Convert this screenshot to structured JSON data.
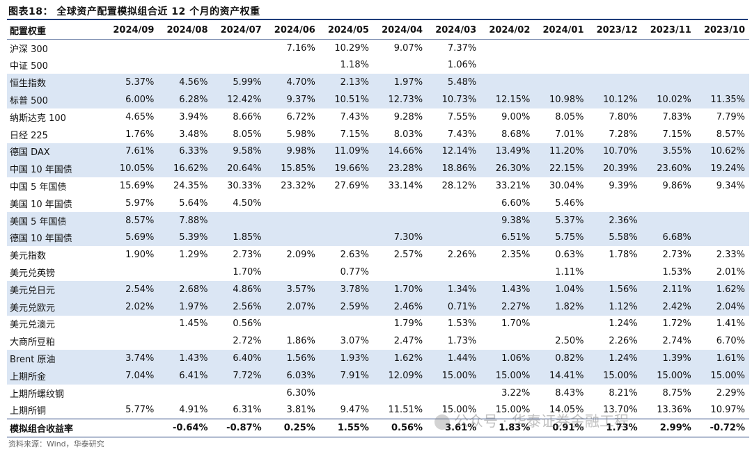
{
  "title": "图表18：  全球资产配置模拟组合近 12 个月的资产权重",
  "columns": [
    "配置权重",
    "2024/09",
    "2024/08",
    "2024/07",
    "2024/06",
    "2024/05",
    "2024/04",
    "2024/03",
    "2024/02",
    "2024/01",
    "2023/12",
    "2023/11",
    "2023/10"
  ],
  "rows": [
    {
      "name": "沪深 300",
      "shade": false,
      "cells": [
        "",
        "",
        "",
        "7.16%",
        "10.29%",
        "9.07%",
        "7.37%",
        "",
        "",
        "",
        "",
        ""
      ]
    },
    {
      "name": "中证 500",
      "shade": false,
      "cells": [
        "",
        "",
        "",
        "",
        "1.18%",
        "",
        "1.06%",
        "",
        "",
        "",
        "",
        ""
      ]
    },
    {
      "name": "恒生指数",
      "shade": true,
      "cells": [
        "5.37%",
        "4.56%",
        "5.99%",
        "4.70%",
        "2.13%",
        "1.97%",
        "5.48%",
        "",
        "",
        "",
        "",
        ""
      ]
    },
    {
      "name": "标普 500",
      "shade": true,
      "cells": [
        "6.00%",
        "6.28%",
        "12.42%",
        "9.37%",
        "10.51%",
        "12.73%",
        "10.73%",
        "12.15%",
        "10.98%",
        "10.12%",
        "10.02%",
        "11.35%"
      ]
    },
    {
      "name": "纳斯达克 100",
      "shade": false,
      "cells": [
        "4.65%",
        "3.94%",
        "8.66%",
        "6.72%",
        "7.43%",
        "9.28%",
        "7.55%",
        "9.00%",
        "8.05%",
        "7.80%",
        "7.83%",
        "7.79%"
      ]
    },
    {
      "name": "日经 225",
      "shade": false,
      "cells": [
        "1.76%",
        "3.48%",
        "8.05%",
        "5.98%",
        "7.15%",
        "8.03%",
        "7.43%",
        "8.68%",
        "7.01%",
        "7.28%",
        "7.15%",
        "8.57%"
      ]
    },
    {
      "name": "德国 DAX",
      "shade": true,
      "cells": [
        "7.61%",
        "6.33%",
        "9.58%",
        "9.98%",
        "11.09%",
        "14.66%",
        "12.14%",
        "13.49%",
        "11.20%",
        "10.70%",
        "3.55%",
        "10.62%"
      ]
    },
    {
      "name": "中国 10 年国债",
      "shade": true,
      "cells": [
        "10.05%",
        "16.62%",
        "20.64%",
        "15.85%",
        "19.66%",
        "23.28%",
        "18.86%",
        "26.30%",
        "22.15%",
        "20.39%",
        "23.60%",
        "19.24%"
      ]
    },
    {
      "name": "中国 5 年国债",
      "shade": false,
      "cells": [
        "15.69%",
        "24.35%",
        "30.33%",
        "23.32%",
        "27.69%",
        "33.14%",
        "28.12%",
        "33.21%",
        "30.04%",
        "9.39%",
        "9.86%",
        "9.34%"
      ]
    },
    {
      "name": "美国 10 年国债",
      "shade": false,
      "cells": [
        "5.97%",
        "5.64%",
        "4.50%",
        "",
        "",
        "",
        "",
        "6.60%",
        "5.46%",
        "",
        "",
        ""
      ]
    },
    {
      "name": "美国 5 年国债",
      "shade": true,
      "cells": [
        "8.57%",
        "7.88%",
        "",
        "",
        "",
        "",
        "",
        "9.38%",
        "5.37%",
        "2.36%",
        "",
        ""
      ]
    },
    {
      "name": "德国 10 年国债",
      "shade": true,
      "cells": [
        "5.69%",
        "5.39%",
        "1.85%",
        "",
        "",
        "7.30%",
        "",
        "6.51%",
        "5.75%",
        "5.58%",
        "6.68%",
        ""
      ]
    },
    {
      "name": "美元指数",
      "shade": false,
      "cells": [
        "1.90%",
        "1.29%",
        "2.73%",
        "2.09%",
        "2.63%",
        "2.57%",
        "2.26%",
        "2.35%",
        "0.63%",
        "1.78%",
        "2.73%",
        "2.33%"
      ]
    },
    {
      "name": "美元兑英镑",
      "shade": false,
      "cells": [
        "",
        "",
        "1.70%",
        "",
        "0.77%",
        "",
        "",
        "",
        "1.11%",
        "",
        "1.53%",
        "2.01%"
      ]
    },
    {
      "name": "美元兑日元",
      "shade": true,
      "cells": [
        "2.54%",
        "2.68%",
        "4.86%",
        "3.57%",
        "3.78%",
        "1.70%",
        "1.34%",
        "1.43%",
        "1.04%",
        "1.56%",
        "2.11%",
        "1.62%"
      ]
    },
    {
      "name": "美元兑欧元",
      "shade": true,
      "cells": [
        "2.02%",
        "1.97%",
        "2.56%",
        "2.07%",
        "2.59%",
        "2.46%",
        "0.71%",
        "2.27%",
        "1.82%",
        "1.12%",
        "2.42%",
        "2.04%"
      ]
    },
    {
      "name": "美元兑澳元",
      "shade": false,
      "cells": [
        "",
        "1.45%",
        "0.56%",
        "",
        "",
        "1.79%",
        "1.53%",
        "1.70%",
        "",
        "1.24%",
        "1.72%",
        "1.41%"
      ]
    },
    {
      "name": "大商所豆粕",
      "shade": false,
      "cells": [
        "",
        "",
        "2.72%",
        "1.86%",
        "3.07%",
        "2.47%",
        "1.73%",
        "",
        "2.50%",
        "2.26%",
        "2.74%",
        "6.70%"
      ]
    },
    {
      "name": "Brent 原油",
      "shade": true,
      "cells": [
        "3.74%",
        "1.43%",
        "6.40%",
        "1.56%",
        "1.93%",
        "1.62%",
        "1.44%",
        "1.06%",
        "0.82%",
        "1.24%",
        "1.39%",
        "1.61%"
      ]
    },
    {
      "name": "上期所金",
      "shade": true,
      "cells": [
        "7.04%",
        "6.41%",
        "7.72%",
        "6.03%",
        "7.91%",
        "12.09%",
        "15.00%",
        "15.00%",
        "14.41%",
        "15.00%",
        "15.00%",
        "15.00%"
      ]
    },
    {
      "name": "上期所螺纹钢",
      "shade": false,
      "cells": [
        "",
        "",
        "",
        "6.30%",
        "",
        "",
        "",
        "3.22%",
        "8.43%",
        "8.21%",
        "8.75%",
        "2.29%"
      ]
    },
    {
      "name": "上期所铜",
      "shade": false,
      "cells": [
        "5.77%",
        "4.91%",
        "6.31%",
        "3.81%",
        "9.47%",
        "11.51%",
        "15.00%",
        "15.00%",
        "14.05%",
        "13.70%",
        "13.36%",
        "10.97%"
      ]
    }
  ],
  "total": {
    "name": "模拟组合收益率",
    "cells": [
      "",
      "-0.64%",
      "-0.87%",
      "0.25%",
      "1.55%",
      "0.56%",
      "3.61%",
      "1.83%",
      "0.91%",
      "1.73%",
      "2.99%",
      "-0.72%"
    ]
  },
  "source": "资料来源：Wind，华泰研究",
  "watermark": "公众号 · 华泰证券金融工程"
}
